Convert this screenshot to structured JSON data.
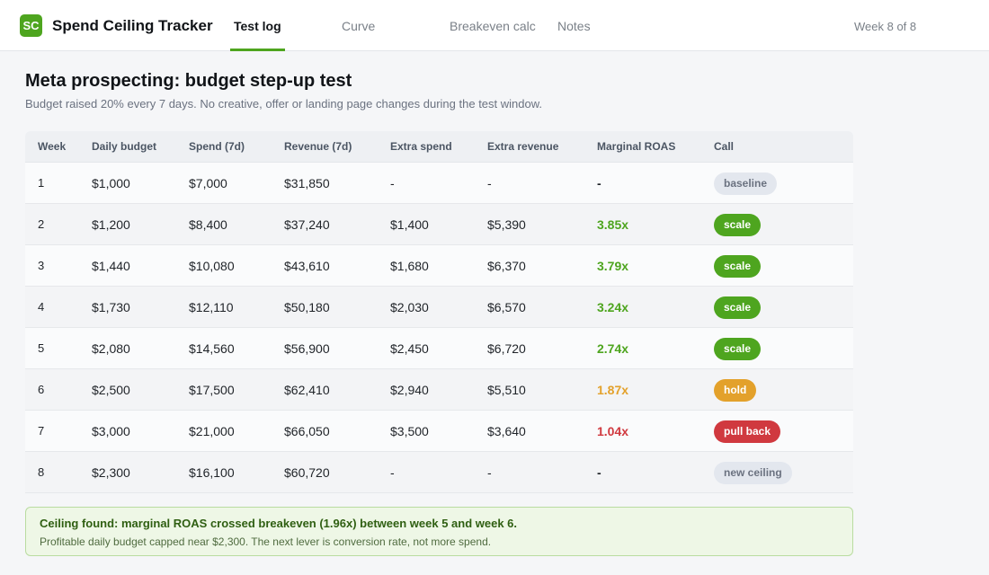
{
  "app": {
    "logo_text": "SC",
    "title": "Spend Ceiling Tracker",
    "brand_color": "#4ea51f"
  },
  "tabs": [
    {
      "label": "Test log",
      "active": true
    },
    {
      "label": "Curve",
      "active": false
    },
    {
      "label": "Breakeven calc",
      "active": false
    },
    {
      "label": "Notes",
      "active": false
    }
  ],
  "week_indicator": "Week 8 of 8",
  "page": {
    "title": "Meta prospecting: budget step-up test",
    "subtitle": "Budget raised 20% every 7 days. No creative, offer or landing page changes during the test window."
  },
  "table": {
    "headers": [
      "Week",
      "Daily budget",
      "Spend (7d)",
      "Revenue (7d)",
      "Extra spend",
      "Extra revenue",
      "Marginal ROAS",
      "Call"
    ],
    "rows": [
      {
        "week": "1",
        "daily_budget": "$1,000",
        "spend": "$7,000",
        "revenue": "$31,850",
        "extra_spend": "-",
        "extra_revenue": "-",
        "mroas": "-",
        "call": "baseline"
      },
      {
        "week": "2",
        "daily_budget": "$1,200",
        "spend": "$8,400",
        "revenue": "$37,240",
        "extra_spend": "$1,400",
        "extra_revenue": "$5,390",
        "mroas": "3.85x",
        "call": "scale"
      },
      {
        "week": "3",
        "daily_budget": "$1,440",
        "spend": "$10,080",
        "revenue": "$43,610",
        "extra_spend": "$1,680",
        "extra_revenue": "$6,370",
        "mroas": "3.79x",
        "call": "scale"
      },
      {
        "week": "4",
        "daily_budget": "$1,730",
        "spend": "$12,110",
        "revenue": "$50,180",
        "extra_spend": "$2,030",
        "extra_revenue": "$6,570",
        "mroas": "3.24x",
        "call": "scale"
      },
      {
        "week": "5",
        "daily_budget": "$2,080",
        "spend": "$14,560",
        "revenue": "$56,900",
        "extra_spend": "$2,450",
        "extra_revenue": "$6,720",
        "mroas": "2.74x",
        "call": "scale"
      },
      {
        "week": "6",
        "daily_budget": "$2,500",
        "spend": "$17,500",
        "revenue": "$62,410",
        "extra_spend": "$2,940",
        "extra_revenue": "$5,510",
        "mroas": "1.87x",
        "call": "hold"
      },
      {
        "week": "7",
        "daily_budget": "$3,000",
        "spend": "$21,000",
        "revenue": "$66,050",
        "extra_spend": "$3,500",
        "extra_revenue": "$3,640",
        "mroas": "1.04x",
        "call": "pull back"
      },
      {
        "week": "8",
        "daily_budget": "$2,300",
        "spend": "$16,100",
        "revenue": "$60,720",
        "extra_spend": "-",
        "extra_revenue": "-",
        "mroas": "-",
        "call": "new ceiling"
      }
    ]
  },
  "status_colors": {
    "scale": "#4ea51f",
    "hold": "#e3a12b",
    "pull back": "#d0393f",
    "neutral_bg": "#e3e7ee",
    "neutral_text": "#6b7280"
  },
  "callout": {
    "title": "Ceiling found: marginal ROAS crossed breakeven (1.96x) between week 5 and week 6.",
    "text": "Profitable daily budget capped near $2,300. The next lever is conversion rate, not more spend."
  }
}
